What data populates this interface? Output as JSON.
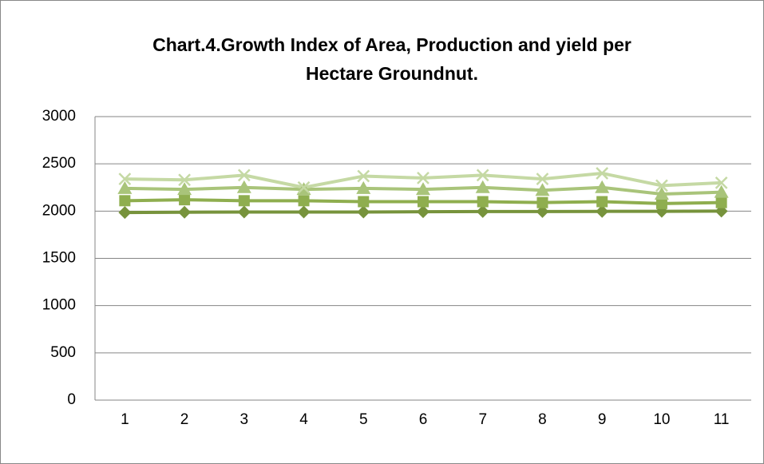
{
  "chart_data": {
    "type": "line",
    "title": [
      "Chart.4.Growth Index of Area, Production and yield per",
      "Hectare Groundnut."
    ],
    "categories": [
      "1",
      "2",
      "3",
      "4",
      "5",
      "6",
      "7",
      "8",
      "9",
      "10",
      "11"
    ],
    "series": [
      {
        "color": "#77933c",
        "marker": "diamond",
        "values": [
          1985,
          1988,
          1990,
          1990,
          1990,
          1993,
          1995,
          1995,
          1997,
          1998,
          2000
        ]
      },
      {
        "color": "#8fae4f",
        "marker": "square",
        "values": [
          2110,
          2120,
          2110,
          2110,
          2100,
          2100,
          2100,
          2090,
          2100,
          2080,
          2090
        ]
      },
      {
        "color": "#a9c47a",
        "marker": "triangle",
        "values": [
          2240,
          2230,
          2250,
          2230,
          2240,
          2230,
          2250,
          2220,
          2250,
          2180,
          2200
        ]
      },
      {
        "color": "#c5d9a4",
        "marker": "x",
        "values": [
          2340,
          2330,
          2380,
          2250,
          2370,
          2350,
          2380,
          2340,
          2400,
          2270,
          2300
        ]
      }
    ],
    "ylim": [
      0,
      3000
    ],
    "yticks": [
      0,
      500,
      1000,
      1500,
      2000,
      2500,
      3000
    ],
    "grid": true
  }
}
